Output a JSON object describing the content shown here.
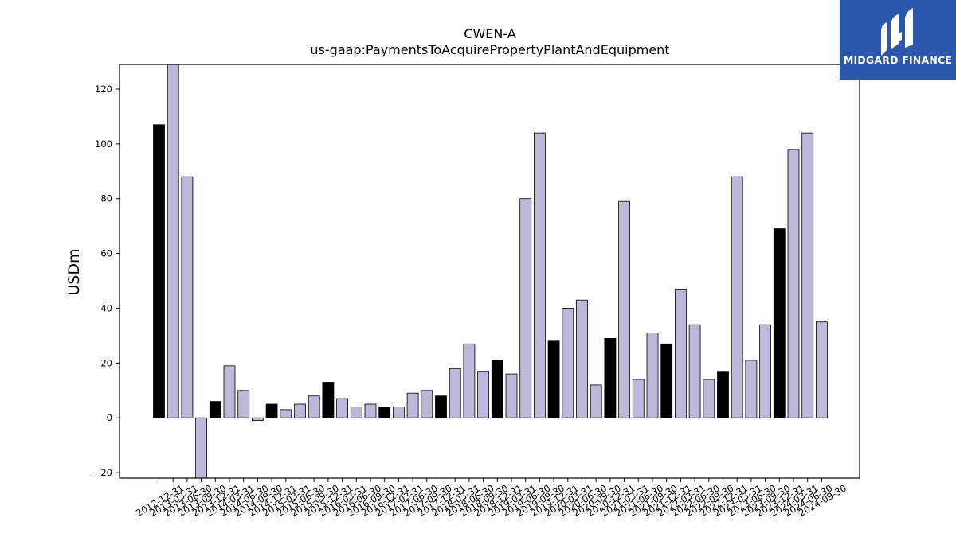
{
  "logo": {
    "text": "MIDGARD FINANCE",
    "background": "#2b58ad"
  },
  "chart_data": {
    "type": "bar",
    "title": "CWEN-A",
    "subtitle": "us-gaap:PaymentsToAcquirePropertyPlantAndEquipment",
    "ylabel": "USDm",
    "xlabel": "",
    "ylim": [
      -22,
      129
    ],
    "yticks": [
      -20,
      0,
      20,
      40,
      60,
      80,
      100,
      120
    ],
    "grid": false,
    "colors": {
      "annual": "#000000",
      "quarterly": "#bcb8d9",
      "edge": "#000000"
    },
    "categories": [
      "2012-12-31",
      "2013-03-31",
      "2013-06-30",
      "2013-09-30",
      "2013-12-31",
      "2014-03-31",
      "2014-06-30",
      "2014-09-30",
      "2014-12-31",
      "2015-03-31",
      "2015-06-30",
      "2015-09-30",
      "2015-12-31",
      "2016-03-31",
      "2016-06-30",
      "2016-09-30",
      "2016-12-31",
      "2017-03-31",
      "2017-06-30",
      "2017-09-30",
      "2017-12-31",
      "2018-03-31",
      "2018-06-30",
      "2018-09-30",
      "2018-12-31",
      "2019-03-31",
      "2019-06-30",
      "2019-09-30",
      "2019-12-31",
      "2020-03-31",
      "2020-06-30",
      "2020-09-30",
      "2020-12-31",
      "2021-03-31",
      "2021-06-30",
      "2021-09-30",
      "2021-12-31",
      "2022-03-31",
      "2022-06-30",
      "2022-09-30",
      "2022-12-31",
      "2023-03-31",
      "2023-06-30",
      "2023-09-30",
      "2023-12-31",
      "2024-03-31",
      "2024-06-30",
      "2024-09-30"
    ],
    "values": [
      107,
      129,
      88,
      -22,
      6,
      19,
      10,
      -1,
      5,
      3,
      5,
      8,
      13,
      7,
      4,
      5,
      4,
      4,
      9,
      10,
      8,
      18,
      27,
      17,
      21,
      16,
      80,
      104,
      28,
      40,
      43,
      12,
      29,
      79,
      14,
      31,
      27,
      47,
      34,
      14,
      17,
      88,
      21,
      34,
      69,
      98,
      104,
      35
    ],
    "annual": [
      true,
      false,
      false,
      false,
      true,
      false,
      false,
      false,
      true,
      false,
      false,
      false,
      true,
      false,
      false,
      false,
      true,
      false,
      false,
      false,
      true,
      false,
      false,
      false,
      true,
      false,
      false,
      false,
      true,
      false,
      false,
      false,
      true,
      false,
      false,
      false,
      true,
      false,
      false,
      false,
      true,
      false,
      false,
      false,
      true,
      false,
      false,
      false
    ]
  }
}
